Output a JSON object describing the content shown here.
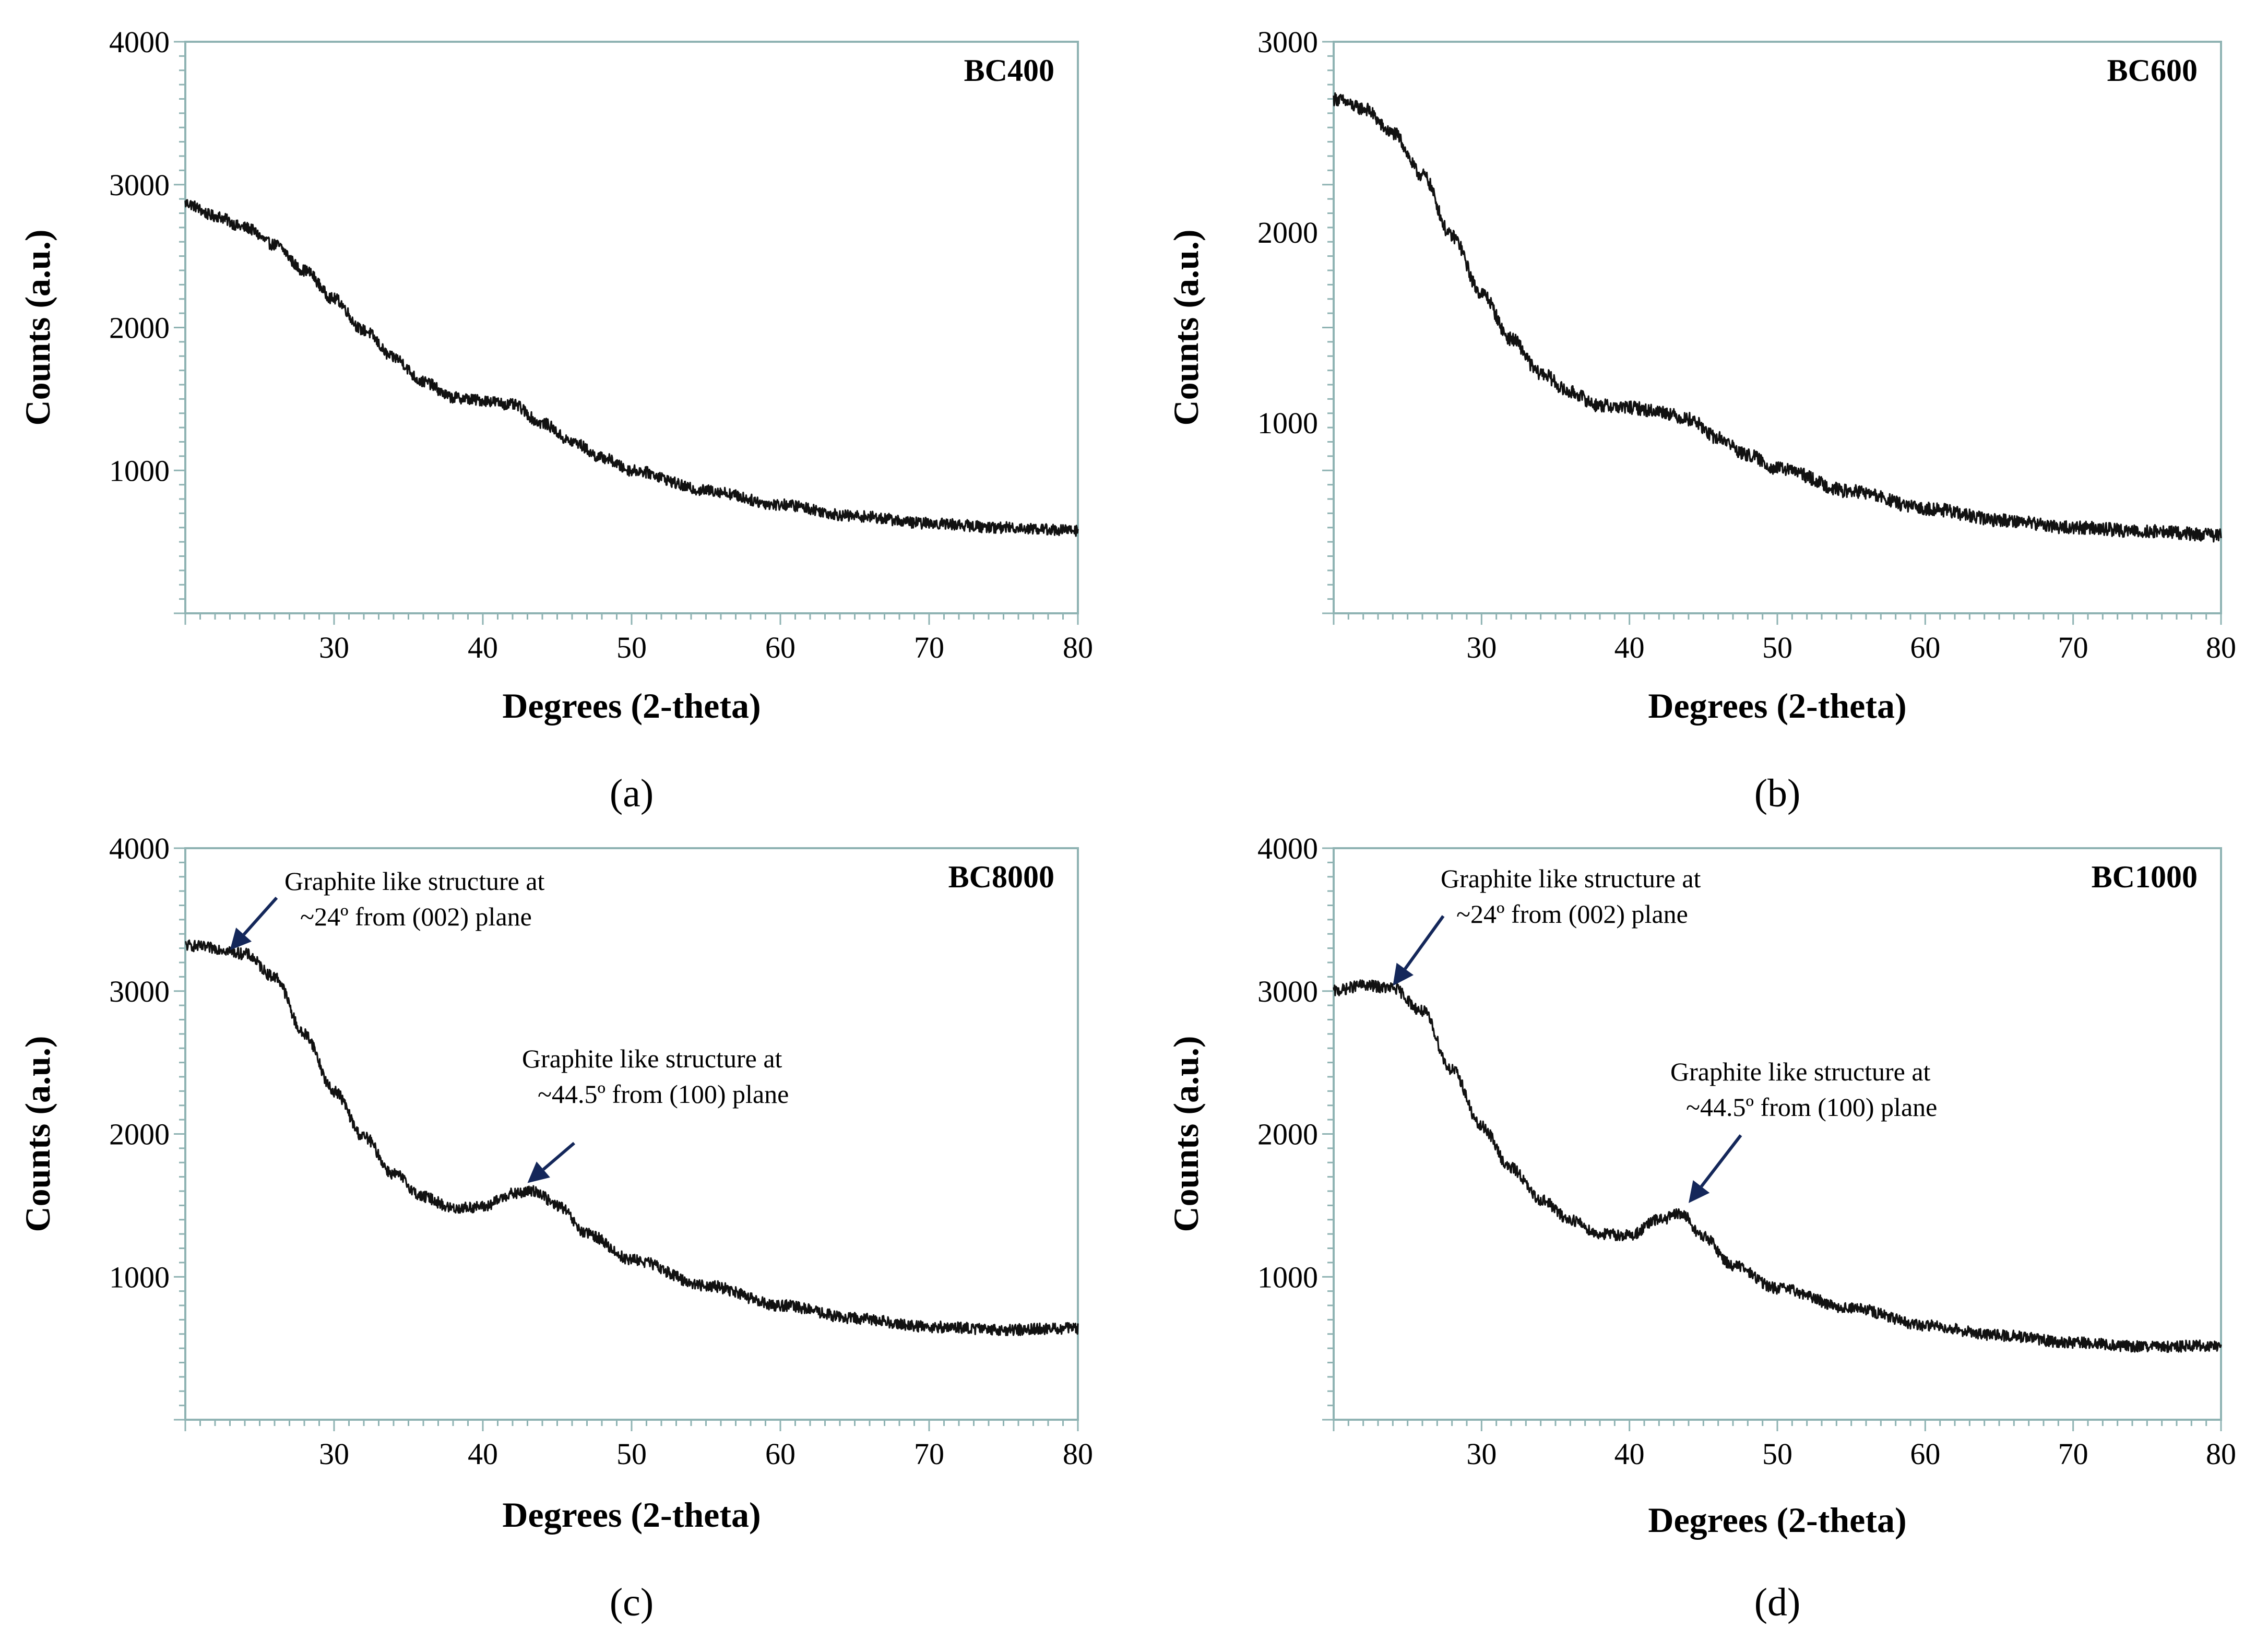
{
  "chart_data": [
    {
      "type": "line",
      "panel": "(a)",
      "sample_label": "BC400",
      "xlabel": "Degrees (2-theta)",
      "ylabel": "Counts (a.u.)",
      "xlim": [
        20,
        80
      ],
      "ylim": [
        0,
        4000
      ],
      "xticks": [
        30,
        40,
        50,
        60,
        70,
        80
      ],
      "yticks": [
        1000,
        2000,
        3000,
        4000
      ],
      "x": [
        20,
        22,
        24,
        26,
        28,
        30,
        32,
        34,
        36,
        38,
        40,
        42,
        44,
        46,
        48,
        50,
        55,
        60,
        65,
        70,
        75,
        80
      ],
      "y": [
        2870,
        2780,
        2700,
        2580,
        2400,
        2200,
        1980,
        1790,
        1620,
        1510,
        1490,
        1460,
        1330,
        1200,
        1090,
        1000,
        860,
        760,
        680,
        630,
        600,
        580
      ],
      "noise": 40,
      "annotations": []
    },
    {
      "type": "line",
      "panel": "(b)",
      "sample_label": "BC600",
      "xlabel": "Degrees (2-theta)",
      "ylabel": "Counts (a.u.)",
      "xlim": [
        20,
        80
      ],
      "ylim": [
        0,
        3000
      ],
      "xticks": [
        30,
        40,
        50,
        60,
        70,
        80
      ],
      "yticks": [
        1000,
        2000,
        3000
      ],
      "x": [
        20,
        22,
        24,
        26,
        28,
        30,
        32,
        34,
        36,
        38,
        40,
        42,
        44,
        46,
        48,
        50,
        55,
        60,
        65,
        70,
        75,
        80
      ],
      "y": [
        2700,
        2650,
        2520,
        2300,
        1980,
        1680,
        1440,
        1260,
        1160,
        1090,
        1080,
        1060,
        1020,
        920,
        830,
        760,
        640,
        550,
        490,
        450,
        430,
        410
      ],
      "noise": 35,
      "annotations": []
    },
    {
      "type": "line",
      "panel": "(c)",
      "sample_label": "BC8000",
      "xlabel": "Degrees (2-theta)",
      "ylabel": "Counts (a.u.)",
      "xlim": [
        20,
        80
      ],
      "ylim": [
        0,
        4000
      ],
      "xticks": [
        30,
        40,
        50,
        60,
        70,
        80
      ],
      "yticks": [
        1000,
        2000,
        3000,
        4000
      ],
      "x": [
        20,
        22,
        24,
        26,
        28,
        30,
        32,
        34,
        36,
        38,
        40,
        42,
        43.5,
        45,
        47,
        50,
        55,
        60,
        65,
        70,
        75,
        80
      ],
      "y": [
        3320,
        3300,
        3260,
        3100,
        2700,
        2300,
        1980,
        1720,
        1560,
        1480,
        1490,
        1580,
        1600,
        1500,
        1300,
        1120,
        940,
        800,
        710,
        650,
        630,
        640
      ],
      "noise": 40,
      "annotations": [
        {
          "line1": "Graphite like structure at",
          "line2": "~24º from (002) plane",
          "x": 23,
          "y": 3250
        },
        {
          "line1": "Graphite like structure at",
          "line2": "~44.5º from (100) plane",
          "x": 43,
          "y": 1620
        }
      ]
    },
    {
      "type": "line",
      "panel": "(d)",
      "sample_label": "BC1000",
      "xlabel": "Degrees (2-theta)",
      "ylabel": "Counts (a.u.)",
      "xlim": [
        20,
        80
      ],
      "ylim": [
        0,
        4000
      ],
      "xticks": [
        30,
        40,
        50,
        60,
        70,
        80
      ],
      "yticks": [
        1000,
        2000,
        3000,
        4000
      ],
      "x": [
        20,
        22,
        24,
        26,
        28,
        30,
        32,
        34,
        36,
        38,
        40,
        42,
        43.5,
        45,
        47,
        50,
        55,
        60,
        65,
        70,
        75,
        80
      ],
      "y": [
        3000,
        3040,
        3020,
        2860,
        2450,
        2050,
        1760,
        1540,
        1400,
        1300,
        1290,
        1400,
        1440,
        1280,
        1080,
        920,
        780,
        660,
        590,
        540,
        510,
        520
      ],
      "noise": 40,
      "annotations": [
        {
          "line1": "Graphite like structure at",
          "line2": "~24º from (002) plane",
          "x": 24,
          "y": 3000
        },
        {
          "line1": "Graphite like structure at",
          "line2": "~44.5º from (100) plane",
          "x": 44,
          "y": 1480
        }
      ]
    }
  ]
}
